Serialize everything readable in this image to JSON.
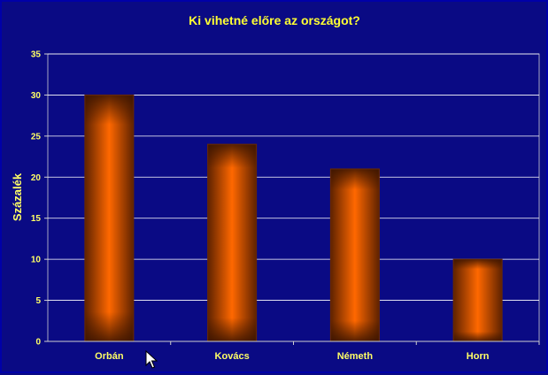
{
  "chart_data": {
    "type": "bar",
    "title": "Ki vihetné előre az országot?",
    "ylabel": "Százalék",
    "xlabel": "",
    "categories": [
      "Orbán",
      "Kovács",
      "Németh",
      "Horn"
    ],
    "values": [
      30,
      24,
      21,
      10
    ],
    "ylim": [
      0,
      35
    ],
    "yticks": [
      0,
      5,
      10,
      15,
      20,
      25,
      30,
      35
    ],
    "ytick_labels": [
      "0",
      "5",
      "10",
      "15",
      "20",
      "25",
      "30",
      "35"
    ],
    "grid": true,
    "legend": "none"
  },
  "colors": {
    "background": "#0a0a84",
    "frame": "#0000a8",
    "title": "#ffff33",
    "axis_text": "#ffff66",
    "gridline": "#ffffff",
    "bar_edge": "#6b2a00",
    "bar_center": "#ff6a00"
  },
  "icons": {
    "cursor": "mouse-pointer-icon"
  }
}
